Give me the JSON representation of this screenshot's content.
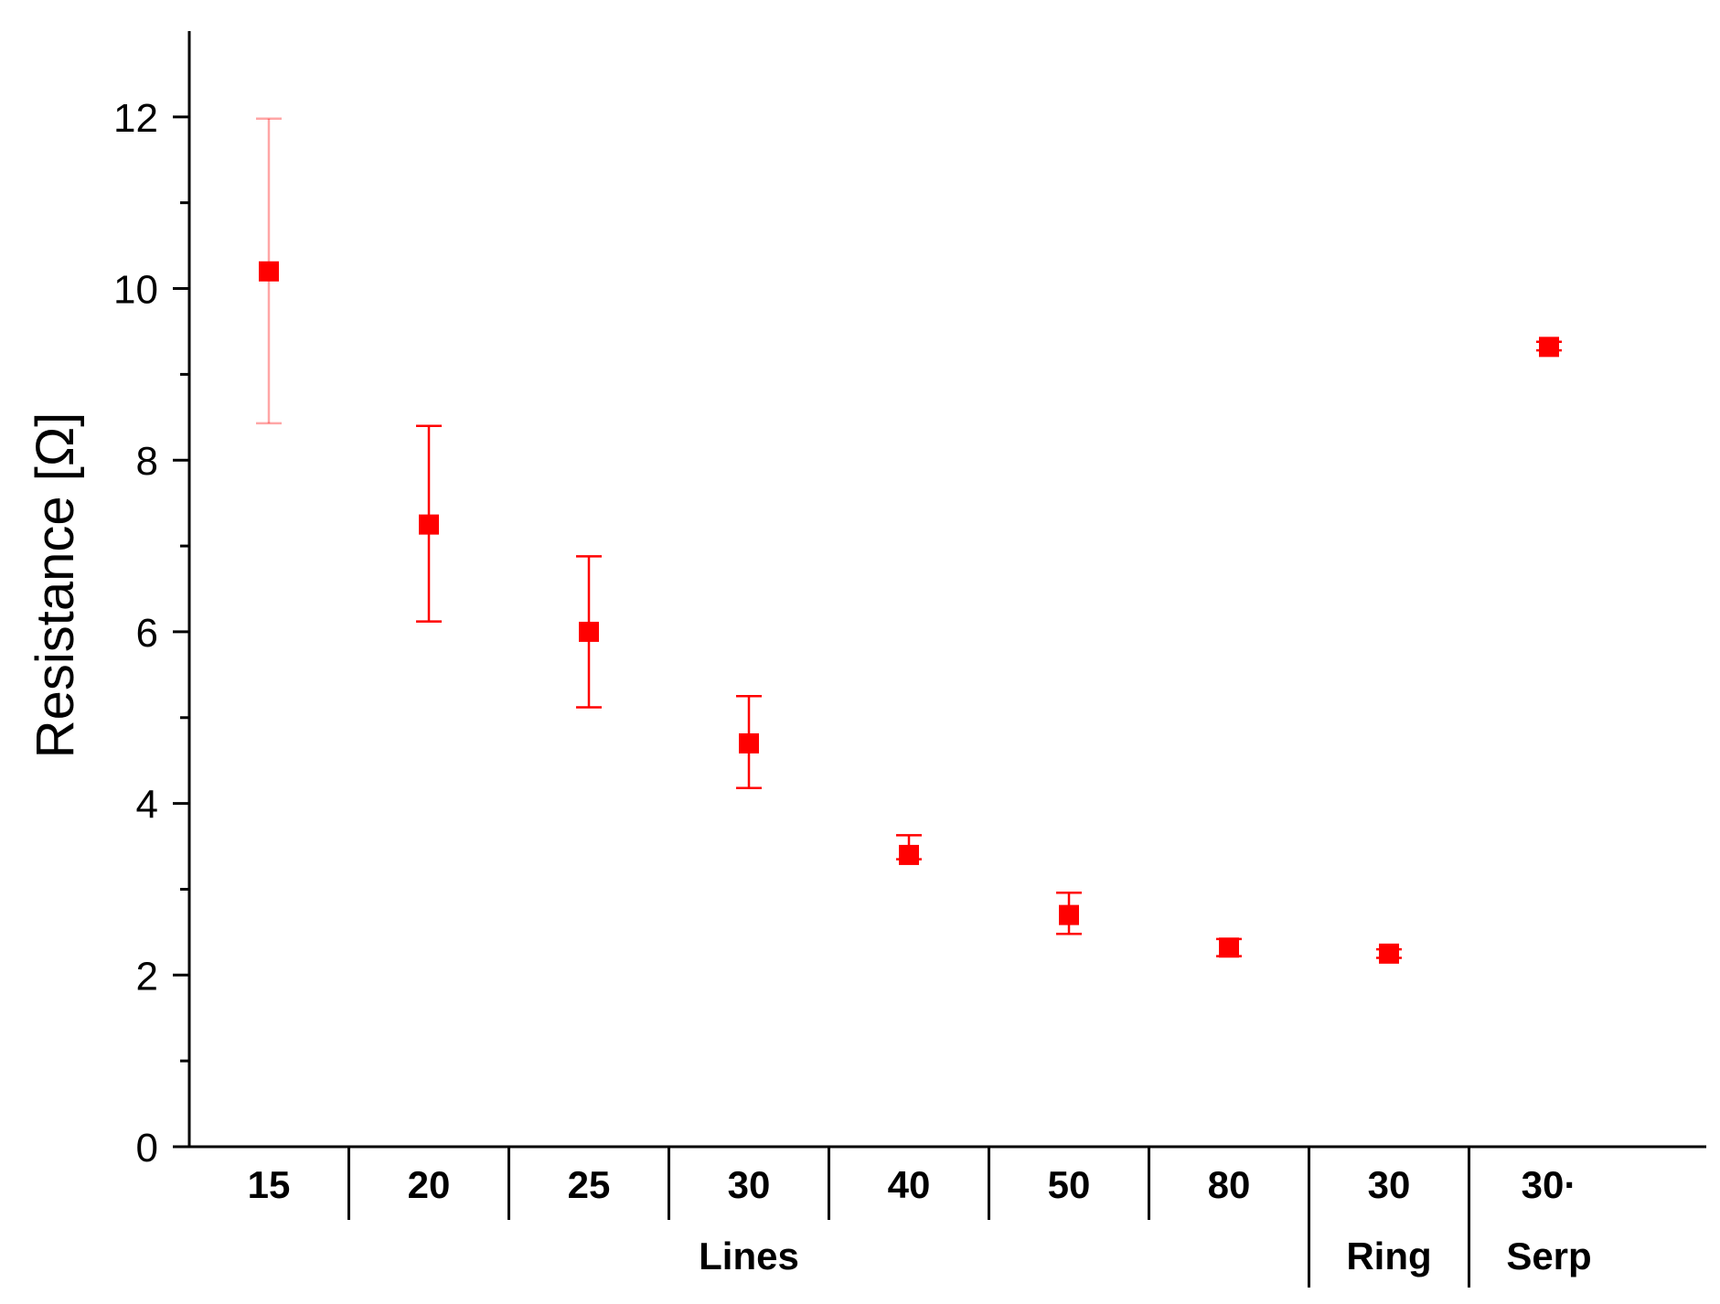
{
  "chart_data": {
    "type": "scatter",
    "ylabel": "Resistance [Ω]",
    "xlabel": "",
    "ylim": [
      0,
      13
    ],
    "yticks": [
      0,
      2,
      4,
      6,
      8,
      10,
      12
    ],
    "grid": false,
    "legend": "none",
    "marker": "square",
    "color": "#ff0000",
    "categories": [
      "15",
      "20",
      "25",
      "30",
      "40",
      "50",
      "80",
      "30",
      "30·"
    ],
    "groups": [
      {
        "label": "Lines",
        "from": 0,
        "to": 6
      },
      {
        "label": "Ring",
        "from": 7,
        "to": 7
      },
      {
        "label": "Serp",
        "from": 8,
        "to": 8
      }
    ],
    "values": [
      10.2,
      7.25,
      6.0,
      4.7,
      3.4,
      2.7,
      2.32,
      2.25,
      9.32
    ],
    "error_low": [
      8.43,
      6.12,
      5.12,
      4.18,
      3.35,
      2.48,
      2.22,
      2.2,
      9.28
    ],
    "error_high": [
      11.98,
      8.4,
      6.88,
      5.25,
      3.63,
      2.96,
      2.42,
      2.3,
      9.38
    ]
  }
}
